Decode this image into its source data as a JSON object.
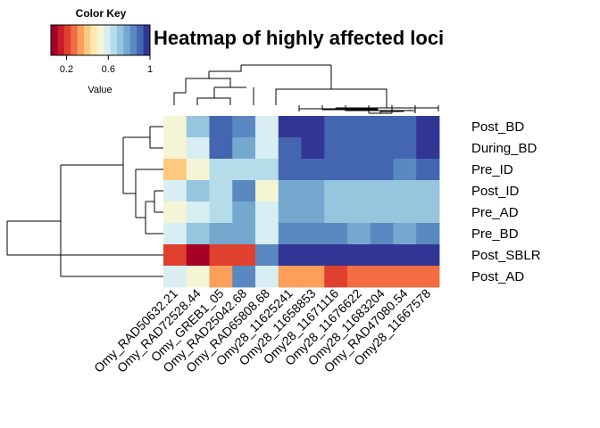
{
  "chart_data": {
    "type": "heatmap",
    "title": "Heatmap of highly affected loci",
    "rows": [
      "Post_BD",
      "During_BD",
      "Pre_ID",
      "Post_ID",
      "Pre_AD",
      "Pre_BD",
      "Post_SBLR",
      "Post_AD"
    ],
    "columns": [
      "Omy_RAD50632.21",
      "Omy_RAD72528.44",
      "Omy_GREB1_05",
      "Omy_RAD25042.68",
      "Omy_RAD65808.68",
      "Omy28_11625241",
      "Omy28_11658853",
      "Omy28_11671116",
      "Omy28_11676622",
      "Omy28_11683204",
      "Omy_RAD47080.54",
      "Omy28_11667578"
    ],
    "values": [
      [
        0.55,
        0.7,
        0.9,
        0.85,
        0.6,
        0.97,
        0.97,
        0.9,
        0.9,
        0.9,
        0.9,
        0.97
      ],
      [
        0.55,
        0.6,
        0.9,
        0.75,
        0.6,
        0.9,
        0.97,
        0.9,
        0.9,
        0.9,
        0.9,
        0.97
      ],
      [
        0.4,
        0.55,
        0.65,
        0.65,
        0.65,
        0.9,
        0.9,
        0.9,
        0.9,
        0.9,
        0.85,
        0.9
      ],
      [
        0.6,
        0.7,
        0.65,
        0.85,
        0.55,
        0.75,
        0.75,
        0.7,
        0.7,
        0.7,
        0.7,
        0.7
      ],
      [
        0.55,
        0.6,
        0.65,
        0.75,
        0.6,
        0.75,
        0.75,
        0.7,
        0.7,
        0.7,
        0.7,
        0.7
      ],
      [
        0.6,
        0.7,
        0.75,
        0.75,
        0.6,
        0.85,
        0.85,
        0.85,
        0.75,
        0.85,
        0.75,
        0.85
      ],
      [
        0.2,
        0.05,
        0.2,
        0.2,
        0.85,
        0.95,
        0.95,
        0.95,
        0.95,
        0.95,
        0.95,
        0.95
      ],
      [
        0.6,
        0.55,
        0.35,
        0.85,
        0.6,
        0.35,
        0.35,
        0.2,
        0.3,
        0.3,
        0.3,
        0.3
      ]
    ],
    "color_key": {
      "title": "Color Key",
      "xlabel": "Value",
      "ticks": [
        "0.2",
        "0.6",
        "1"
      ],
      "tick_values": [
        0.2,
        0.6,
        1.0
      ],
      "range": [
        0.05,
        1.0
      ],
      "palette": [
        "#a50026",
        "#c81a2a",
        "#e0402e",
        "#f26d43",
        "#fb9f5a",
        "#fdc880",
        "#fee8b0",
        "#f5f5d6",
        "#d8eef2",
        "#b5dde9",
        "#95c6dd",
        "#75a8cf",
        "#5a88c0",
        "#4466b0",
        "#313695"
      ]
    }
  }
}
